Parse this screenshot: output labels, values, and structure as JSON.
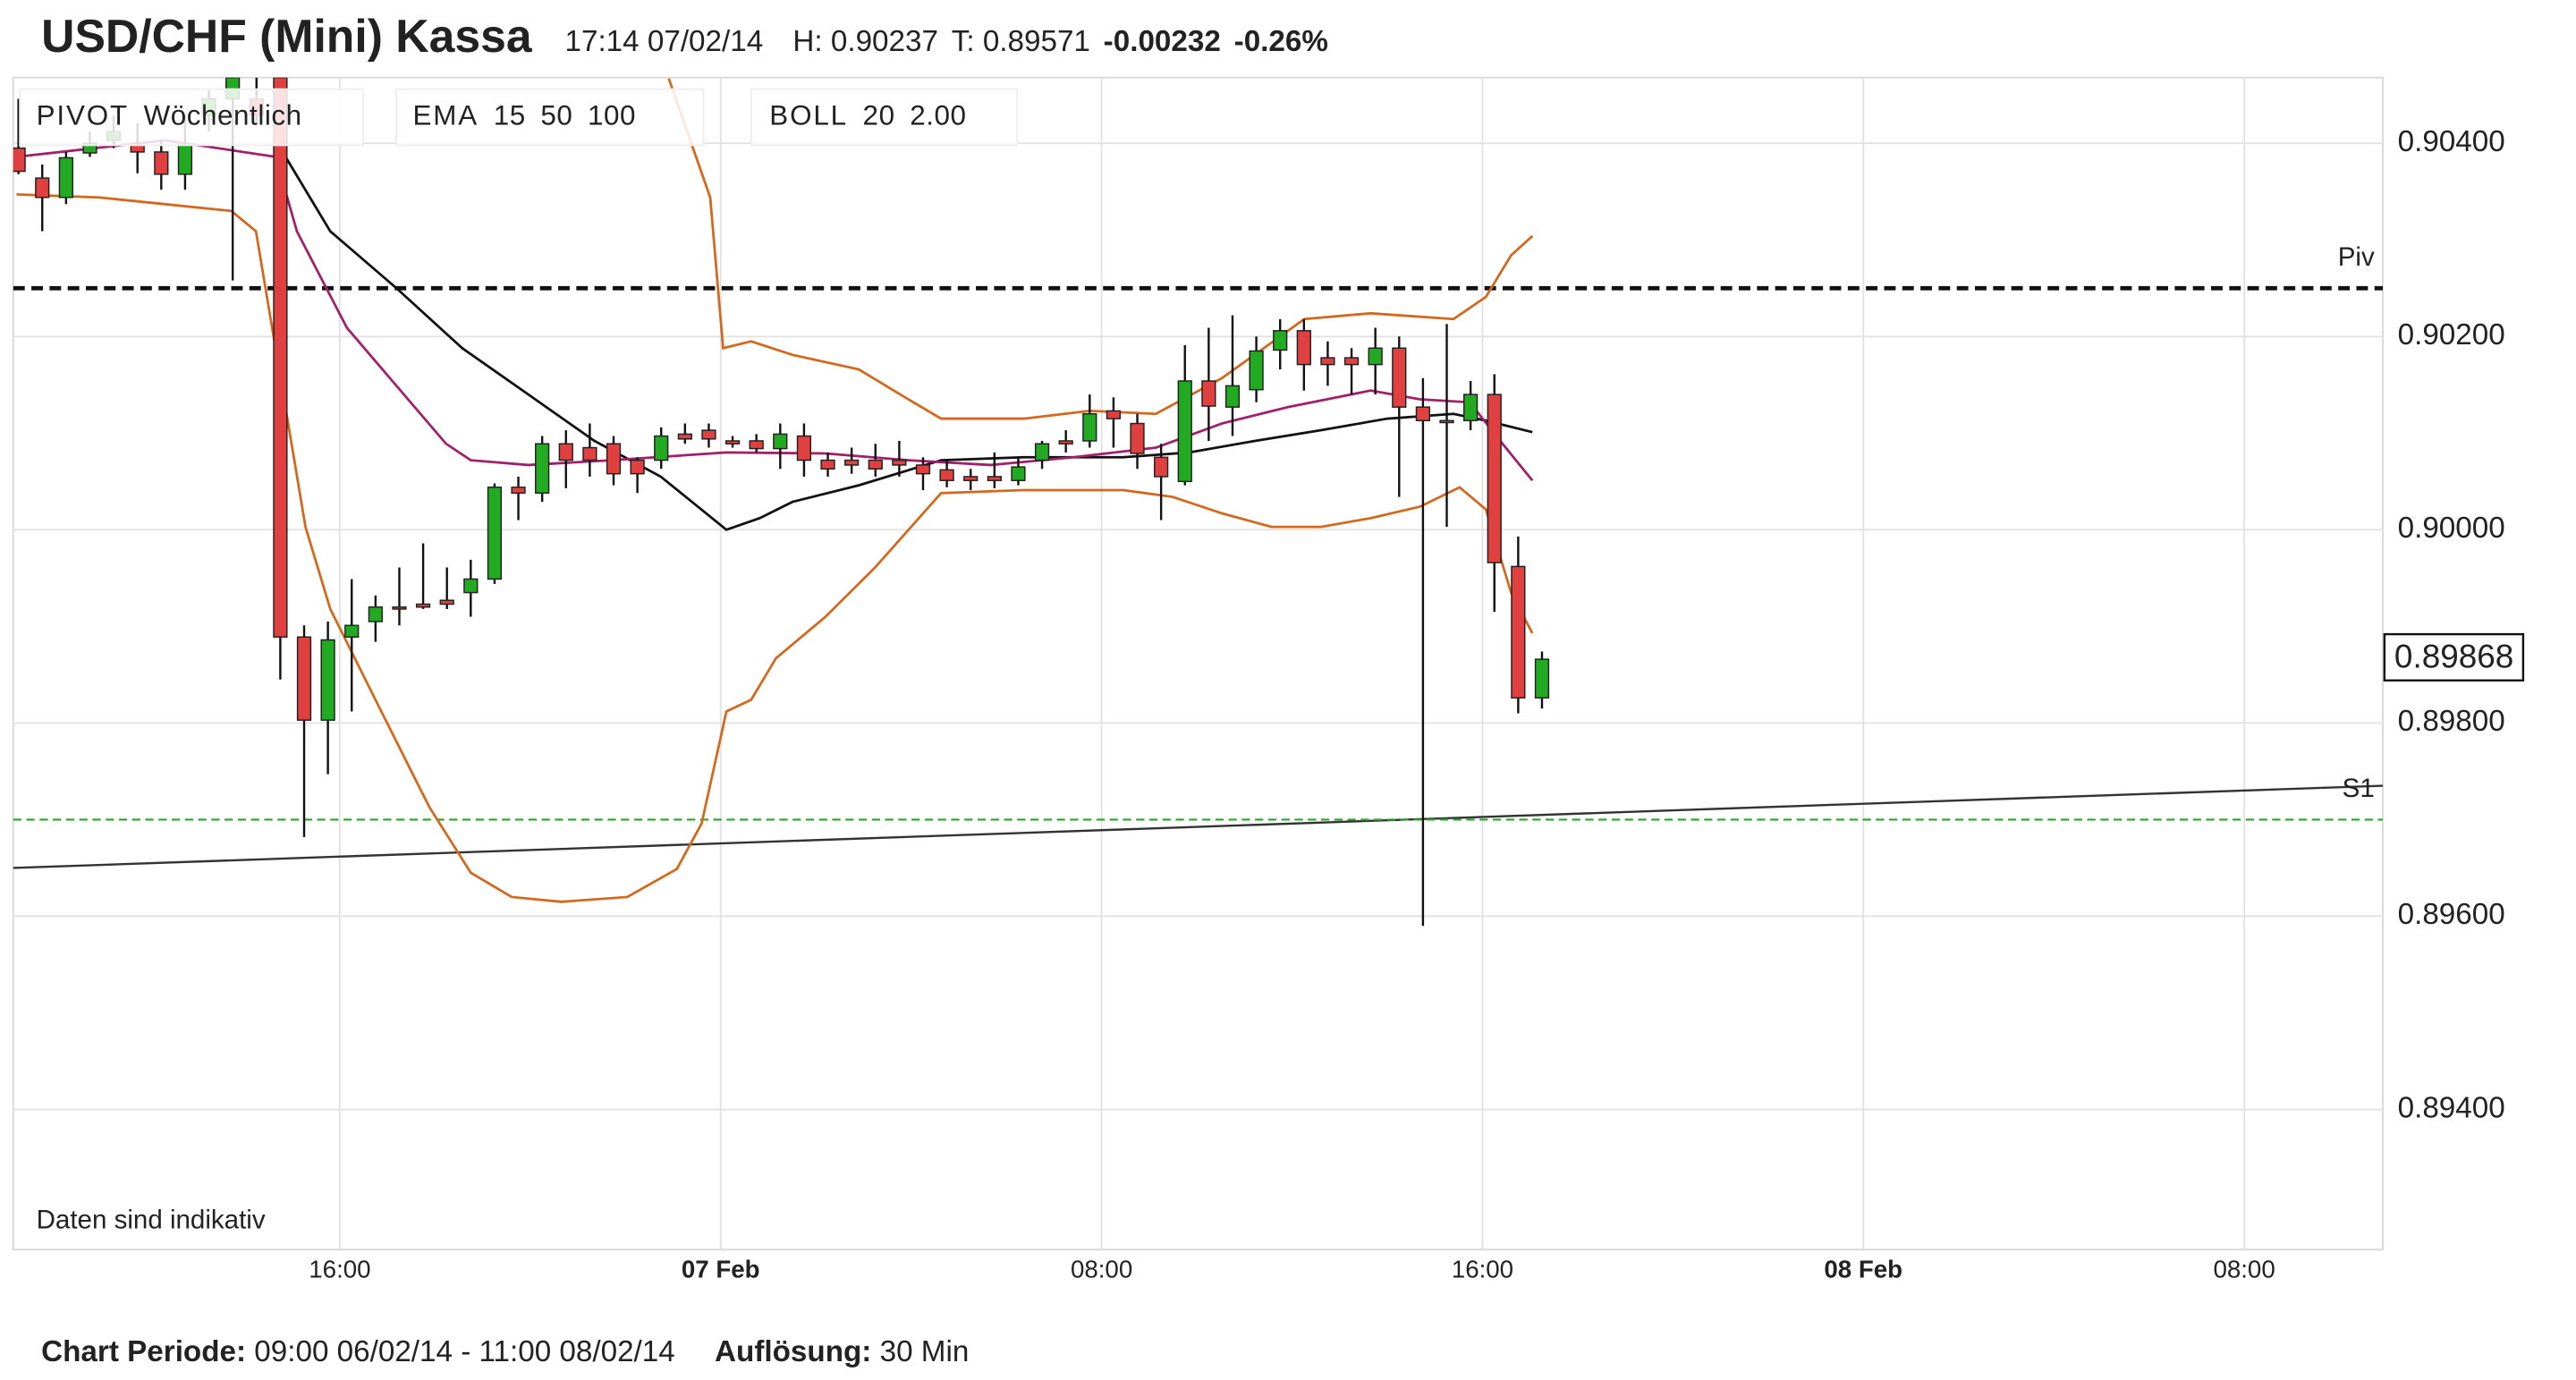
{
  "chart_data": {
    "type": "candlestick",
    "title": "USD/CHF (Mini) Kassa",
    "header": [
      "17:14 07/02/14",
      "H: 0.90237",
      "T: 0.89571",
      "-0.00232",
      "-0.26%"
    ],
    "header_colors": [
      "#333333",
      "#777777",
      "#777777",
      "#d03a3a",
      "#d03a3a"
    ],
    "note": "Daten sind indikativ",
    "footer": [
      "Chart Periode:",
      "09:00 06/02/14 - 11:00 08/02/14",
      "Auflösung:",
      "30 Min"
    ],
    "legend": [
      [
        {
          "text": "PIVOT",
          "color": "#333333"
        },
        {
          "text": "Wöchentlich",
          "color": "#555555"
        }
      ],
      [
        {
          "text": "EMA",
          "color": "#333333"
        },
        {
          "text": "15",
          "color": "#a0206a"
        },
        {
          "text": "50",
          "color": "#2a7f9e"
        },
        {
          "text": "100",
          "color": "#9a6a20"
        }
      ],
      [
        {
          "text": "BOLL",
          "color": "#333333"
        },
        {
          "text": "20",
          "color": "#d2691e"
        },
        {
          "text": "2.00",
          "color": "#d2691e"
        }
      ]
    ],
    "xlim": [
      0.14,
      49.91
    ],
    "xticks": [
      {
        "value": 7,
        "label": "16:00"
      },
      {
        "value": 15,
        "label": "07 Feb"
      },
      {
        "value": 23,
        "label": "08:00"
      },
      {
        "value": 31,
        "label": "16:00"
      },
      {
        "value": 39,
        "label": "08 Feb"
      },
      {
        "value": 47,
        "label": "08:00"
      }
    ],
    "ylim": [
      0.89255,
      0.90468
    ],
    "yticks": [
      {
        "value": 0.894,
        "label": "0.89400"
      },
      {
        "value": 0.896,
        "label": "0.89600"
      },
      {
        "value": 0.898,
        "label": "0.89800"
      },
      {
        "value": 0.9,
        "label": "0.90000"
      },
      {
        "value": 0.902,
        "label": "0.90200"
      },
      {
        "value": 0.904,
        "label": "0.90400"
      }
    ],
    "grid": true,
    "up_color": "#22aa22",
    "down_color": "#e04040",
    "candles": {
      "x": [
        0.25,
        0.75,
        1.25,
        1.75,
        2.25,
        2.75,
        3.25,
        3.75,
        4.25,
        4.75,
        5.25,
        5.75,
        6.25,
        6.75,
        7.25,
        7.75,
        8.25,
        8.75,
        9.25,
        9.75,
        10.25,
        10.75,
        11.25,
        11.75,
        12.25,
        12.75,
        13.25,
        13.75,
        14.25,
        14.75,
        15.25,
        15.75,
        16.25,
        16.75,
        17.25,
        17.75,
        18.25,
        18.75,
        19.25,
        19.75,
        20.25,
        20.75,
        21.25,
        21.75,
        22.25,
        22.75,
        23.25,
        23.75,
        24.25,
        24.75,
        25.25,
        25.75,
        26.25,
        26.75,
        27.25,
        27.75,
        28.25,
        28.75,
        29.25,
        29.75,
        30.25,
        30.75,
        31.25,
        31.75,
        32.25
      ],
      "open": [
        0.90395,
        0.90364,
        0.90344,
        0.9039,
        0.90403,
        0.90398,
        0.90391,
        0.90368,
        0.90429,
        0.90446,
        0.90446,
        0.90468,
        0.89889,
        0.89803,
        0.89889,
        0.89905,
        0.8992,
        0.89923,
        0.89927,
        0.89935,
        0.89949,
        0.90044,
        0.90038,
        0.90089,
        0.90085,
        0.90089,
        0.90072,
        0.90072,
        0.90099,
        0.90103,
        0.90092,
        0.90092,
        0.90084,
        0.90097,
        0.90072,
        0.90072,
        0.90072,
        0.90072,
        0.90067,
        0.90062,
        0.90055,
        0.90055,
        0.90051,
        0.90072,
        0.90092,
        0.90092,
        0.90123,
        0.9011,
        0.90075,
        0.9005,
        0.90154,
        0.90127,
        0.90145,
        0.90186,
        0.90206,
        0.90178,
        0.90178,
        0.90171,
        0.90188,
        0.90127,
        0.90113,
        0.90113,
        0.9014,
        0.89962,
        0.89826
      ],
      "high": [
        0.90446,
        0.90378,
        0.90391,
        0.90412,
        0.90429,
        0.90421,
        0.90403,
        0.90429,
        0.90455,
        0.90468,
        0.90468,
        0.90468,
        0.89901,
        0.89905,
        0.89949,
        0.89932,
        0.89961,
        0.89986,
        0.89961,
        0.89969,
        0.90048,
        0.90055,
        0.90097,
        0.90103,
        0.9011,
        0.90097,
        0.90075,
        0.90106,
        0.9011,
        0.9011,
        0.90097,
        0.90099,
        0.9011,
        0.9011,
        0.9008,
        0.90085,
        0.90089,
        0.90092,
        0.90075,
        0.90072,
        0.90063,
        0.9008,
        0.90075,
        0.90092,
        0.90103,
        0.9014,
        0.90137,
        0.9012,
        0.90089,
        0.90191,
        0.90209,
        0.90222,
        0.902,
        0.90218,
        0.90218,
        0.90195,
        0.90188,
        0.90209,
        0.902,
        0.90157,
        0.90213,
        0.90154,
        0.90161,
        0.89993,
        0.89874
      ],
      "low": [
        0.90368,
        0.90309,
        0.90337,
        0.90386,
        0.90395,
        0.90369,
        0.90352,
        0.90352,
        0.90412,
        0.90258,
        0.90421,
        0.89845,
        0.89682,
        0.89747,
        0.89812,
        0.89884,
        0.89901,
        0.89918,
        0.89918,
        0.8991,
        0.89944,
        0.9001,
        0.90029,
        0.90043,
        0.90055,
        0.90046,
        0.90038,
        0.90063,
        0.90089,
        0.90085,
        0.90085,
        0.9008,
        0.90063,
        0.90055,
        0.90055,
        0.90058,
        0.90055,
        0.90055,
        0.90041,
        0.90044,
        0.90041,
        0.90043,
        0.90046,
        0.90063,
        0.9008,
        0.90085,
        0.90085,
        0.90063,
        0.9001,
        0.90046,
        0.90092,
        0.90097,
        0.90132,
        0.90166,
        0.90144,
        0.90149,
        0.9014,
        0.9014,
        0.90034,
        0.8959,
        0.90003,
        0.90103,
        0.89915,
        0.8981,
        0.89815
      ],
      "close": [
        0.90371,
        0.90344,
        0.90385,
        0.904,
        0.90412,
        0.90391,
        0.90368,
        0.90398,
        0.90446,
        0.90468,
        0.90429,
        0.89889,
        0.89803,
        0.89886,
        0.89901,
        0.8992,
        0.89918,
        0.8992,
        0.89923,
        0.89949,
        0.90044,
        0.90038,
        0.90089,
        0.90072,
        0.90072,
        0.90058,
        0.90058,
        0.90097,
        0.90094,
        0.90094,
        0.90089,
        0.90084,
        0.90099,
        0.90072,
        0.90063,
        0.90067,
        0.90063,
        0.90067,
        0.90058,
        0.90051,
        0.90051,
        0.90051,
        0.90065,
        0.90089,
        0.90089,
        0.9012,
        0.90115,
        0.90079,
        0.90055,
        0.90154,
        0.90128,
        0.90149,
        0.90185,
        0.90206,
        0.90171,
        0.90171,
        0.90171,
        0.90188,
        0.90127,
        0.90113,
        0.90111,
        0.9014,
        0.89966,
        0.89826,
        0.89866
      ]
    },
    "lines": [
      {
        "color": "#d2691e",
        "x": [
          0.21,
          1.94,
          3.33,
          4.72,
          5.24,
          5.58,
          5.93,
          6.28,
          6.8,
          7.84,
          8.88,
          9.75,
          10.61,
          11.65,
          13.04,
          14.08,
          14.6,
          15.12,
          15.64,
          16.16,
          17.2,
          18.24,
          19.63,
          21.37,
          23.45,
          24.49,
          25.53,
          26.57,
          27.61,
          28.65,
          29.69,
          30.52,
          31.07,
          31.6,
          32.05
        ],
        "values": [
          0.90347,
          0.90344,
          0.90337,
          0.9033,
          0.90309,
          0.90209,
          0.90106,
          0.90003,
          0.89918,
          0.89815,
          0.89713,
          0.89645,
          0.8962,
          0.89615,
          0.8962,
          0.89649,
          0.89696,
          0.89812,
          0.89824,
          0.89867,
          0.8991,
          0.89961,
          0.90038,
          0.90041,
          0.90041,
          0.90034,
          0.90017,
          0.90003,
          0.90003,
          0.90012,
          0.90024,
          0.90044,
          0.90021,
          0.89935,
          0.89893
        ]
      },
      {
        "color": "#d2691e",
        "x": [
          13.91,
          14.78,
          15.05,
          15.64,
          16.51,
          17.9,
          18.77,
          19.63,
          21.37,
          22.75,
          24.14,
          25.53,
          27.26,
          28.65,
          30.39,
          31.07,
          31.6,
          32.05
        ],
        "values": [
          0.90467,
          0.90344,
          0.90188,
          0.90195,
          0.90181,
          0.90166,
          0.9014,
          0.90115,
          0.90115,
          0.90123,
          0.9012,
          0.90157,
          0.90218,
          0.90224,
          0.90218,
          0.90241,
          0.90284,
          0.90304
        ]
      },
      {
        "color": "#111111",
        "x": [
          5.65,
          6.8,
          8.19,
          9.57,
          10.96,
          12.35,
          13.74,
          15.12,
          15.82,
          16.51,
          17.9,
          19.63,
          21.37,
          23.45,
          24.84,
          26.22,
          27.61,
          29.0,
          30.39,
          31.07,
          32.05
        ],
        "values": [
          0.90403,
          0.90309,
          0.9025,
          0.90188,
          0.9014,
          0.90092,
          0.90055,
          0.9,
          0.90012,
          0.90029,
          0.90046,
          0.90072,
          0.90075,
          0.90075,
          0.9008,
          0.90092,
          0.90103,
          0.90115,
          0.9012,
          0.90113,
          0.90101
        ]
      },
      {
        "color": "#a0206a",
        "x": [
          0.21,
          3.33,
          5.65,
          6.1,
          7.15,
          8.19,
          9.23,
          9.75,
          10.96,
          12.7,
          15.12,
          17.2,
          18.94,
          20.67,
          22.41,
          24.14,
          25.53,
          26.92,
          28.65,
          29.69,
          30.73,
          31.42,
          32.05
        ],
        "values": [
          0.90386,
          0.90403,
          0.90386,
          0.90309,
          0.90209,
          0.90149,
          0.90089,
          0.90072,
          0.90067,
          0.90072,
          0.9008,
          0.90079,
          0.90072,
          0.90067,
          0.90075,
          0.90085,
          0.9011,
          0.90127,
          0.90144,
          0.90135,
          0.90132,
          0.90089,
          0.90051
        ]
      }
    ],
    "trend_line": {
      "x": [
        0.14,
        49.91
      ],
      "values": [
        0.8965,
        0.89735
      ],
      "color": "#333333"
    },
    "levels": [
      {
        "value": 0.9025,
        "label": "Piv",
        "color": "#111111"
      },
      {
        "value": 0.897,
        "label": "S1",
        "color": "#22aa22"
      }
    ],
    "last_price": {
      "value": 0.89868,
      "label": "0.89868"
    }
  }
}
